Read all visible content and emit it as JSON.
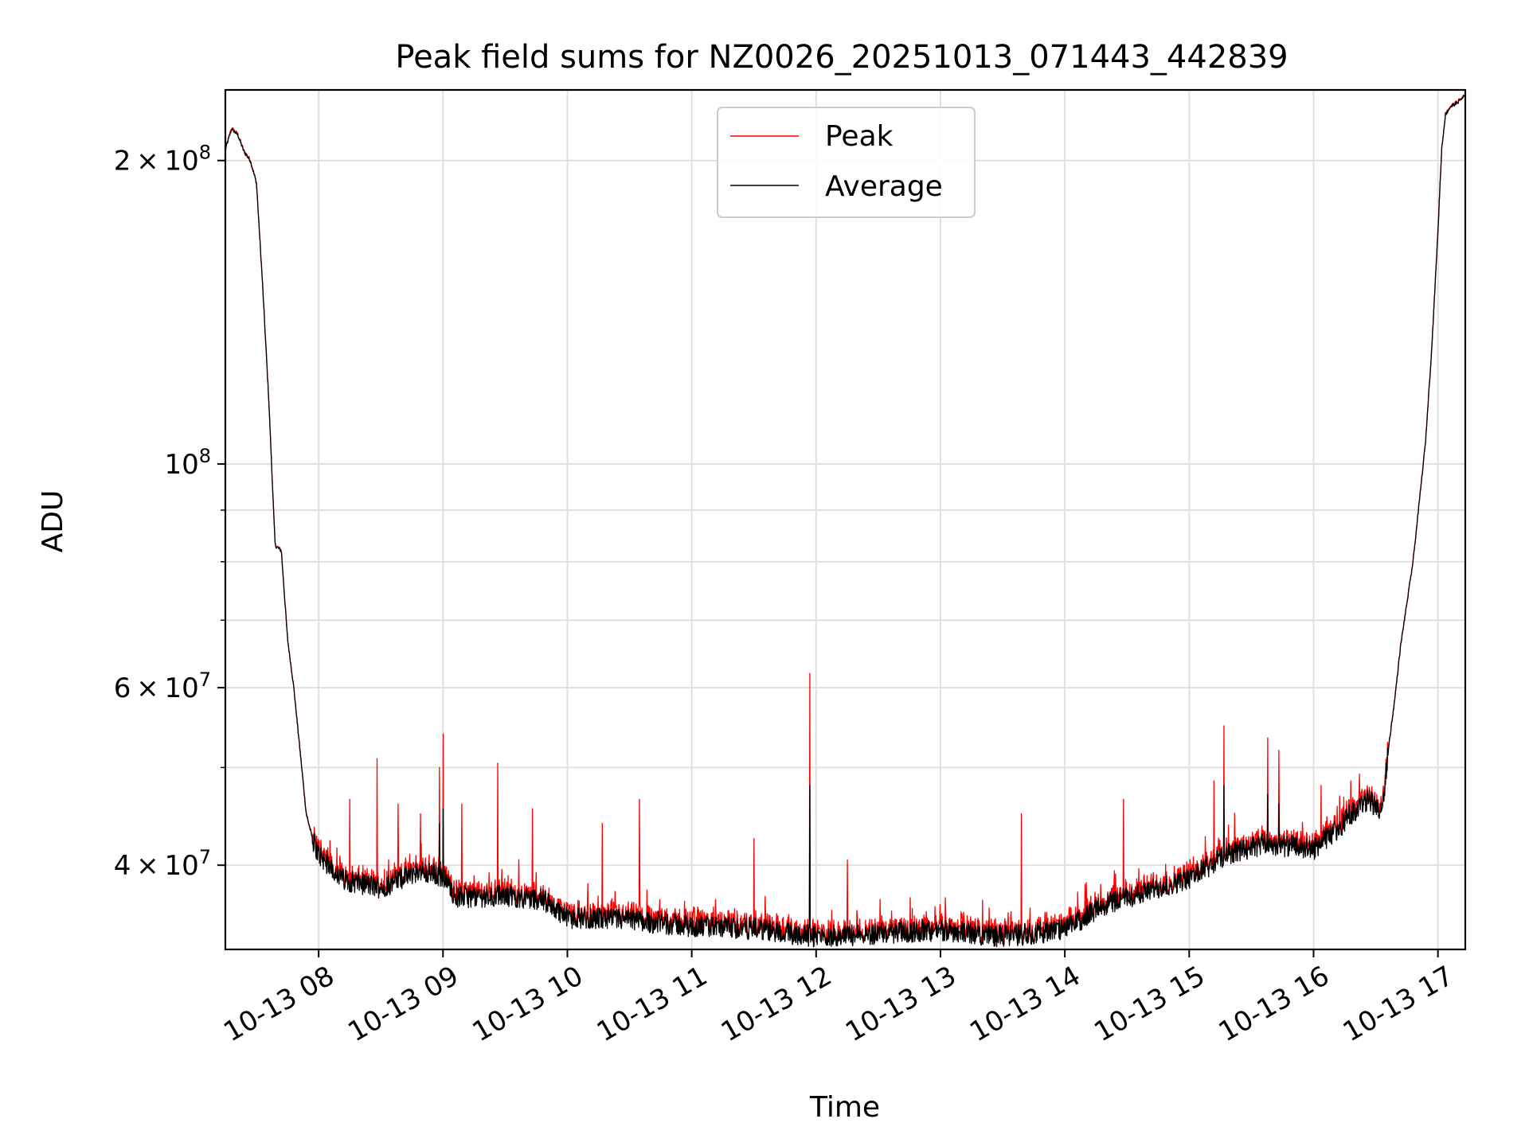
{
  "chart_data": {
    "type": "line",
    "title": "Peak field sums for NZ0026_20251013_071443_442839",
    "xlabel": "Time",
    "ylabel": "ADU",
    "yscale": "log",
    "xlim": [
      7.25,
      17.22
    ],
    "ylim": [
      33000000,
      235000000
    ],
    "grid": true,
    "legend_position": "upper center",
    "x_ticks": [
      8,
      9,
      10,
      11,
      12,
      13,
      14,
      15,
      16,
      17
    ],
    "x_tick_labels": [
      "10-13 08",
      "10-13 09",
      "10-13 10",
      "10-13 11",
      "10-13 12",
      "10-13 13",
      "10-13 14",
      "10-13 15",
      "10-13 16",
      "10-13 17"
    ],
    "y_major_ticks": [
      {
        "value": 40000000,
        "mantissa": "4",
        "exp": "7"
      },
      {
        "value": 60000000,
        "mantissa": "6",
        "exp": "7"
      },
      {
        "value": 100000000,
        "mantissa": "",
        "exp": "8"
      },
      {
        "value": 200000000,
        "mantissa": "2",
        "exp": "8"
      }
    ],
    "y_minor_ticks": [
      50000000,
      70000000,
      80000000,
      90000000
    ],
    "tick_base": "10",
    "times_sign": "×",
    "series": [
      {
        "name": "Peak",
        "color": "#ff0000"
      },
      {
        "name": "Average",
        "color": "#000000"
      }
    ],
    "baseline": {
      "x": [
        7.25,
        7.3,
        7.35,
        7.4,
        7.45,
        7.5,
        7.55,
        7.6,
        7.65,
        7.7,
        7.75,
        7.8,
        7.85,
        7.9,
        7.95,
        8.0,
        8.2,
        8.5,
        8.8,
        9.0,
        9.1,
        9.5,
        9.8,
        10.0,
        10.5,
        11.0,
        11.5,
        12.0,
        12.5,
        13.0,
        13.5,
        14.0,
        14.3,
        14.6,
        15.0,
        15.3,
        15.6,
        16.0,
        16.2,
        16.3,
        16.45,
        16.55,
        16.6,
        16.65,
        16.7,
        16.8,
        16.9,
        16.95,
        17.0,
        17.03,
        17.06,
        17.1,
        17.15,
        17.22
      ],
      "y": [
        205000000,
        215000000,
        212000000,
        204000000,
        200000000,
        190000000,
        150000000,
        115000000,
        83000000,
        82000000,
        67000000,
        60000000,
        52000000,
        45000000,
        42500000,
        41000000,
        38700000,
        38000000,
        39500000,
        39000000,
        37200000,
        37300000,
        37000000,
        35500000,
        35300000,
        34800000,
        34600000,
        34000000,
        34200000,
        34500000,
        34000000,
        34500000,
        36500000,
        37500000,
        38800000,
        41000000,
        42000000,
        41500000,
        43500000,
        45000000,
        46500000,
        45000000,
        52000000,
        58000000,
        66000000,
        80000000,
        105000000,
        130000000,
        170000000,
        205000000,
        222000000,
        226000000,
        228000000,
        232000000
      ]
    },
    "spikes_peak": [
      {
        "x": 8.47,
        "y": 51000000
      },
      {
        "x": 8.97,
        "y": 50000000
      },
      {
        "x": 9.0,
        "y": 54000000
      },
      {
        "x": 9.44,
        "y": 50500000
      },
      {
        "x": 9.72,
        "y": 45500000
      },
      {
        "x": 10.58,
        "y": 46500000
      },
      {
        "x": 10.28,
        "y": 44000000
      },
      {
        "x": 11.5,
        "y": 42500000
      },
      {
        "x": 11.95,
        "y": 62000000
      },
      {
        "x": 12.25,
        "y": 40500000
      },
      {
        "x": 13.65,
        "y": 45000000
      },
      {
        "x": 14.47,
        "y": 46500000
      },
      {
        "x": 15.28,
        "y": 55000000
      },
      {
        "x": 15.63,
        "y": 53500000
      },
      {
        "x": 15.72,
        "y": 52000000
      },
      {
        "x": 15.2,
        "y": 48500000
      },
      {
        "x": 16.06,
        "y": 48000000
      },
      {
        "x": 16.3,
        "y": 48500000
      },
      {
        "x": 8.25,
        "y": 46500000
      },
      {
        "x": 8.64,
        "y": 46000000
      },
      {
        "x": 8.82,
        "y": 45000000
      },
      {
        "x": 9.15,
        "y": 46000000
      }
    ],
    "spikes_avg": [
      {
        "x": 11.95,
        "y": 48000000
      },
      {
        "x": 9.0,
        "y": 45500000
      },
      {
        "x": 15.28,
        "y": 48000000
      },
      {
        "x": 15.63,
        "y": 47000000
      },
      {
        "x": 8.97,
        "y": 44000000
      },
      {
        "x": 15.72,
        "y": 46000000
      }
    ]
  }
}
